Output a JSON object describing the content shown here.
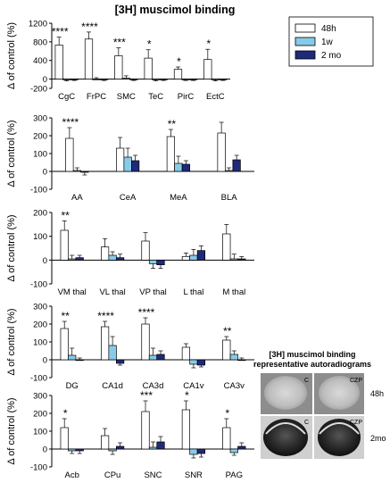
{
  "title": "[3H] muscimol binding",
  "legend": {
    "placement": "top-right",
    "entries": [
      {
        "name": "48h",
        "color": "#ffffff"
      },
      {
        "name": "1w",
        "color": "#87cbe8"
      },
      {
        "name": "2 mo",
        "color": "#1f2a7a"
      }
    ]
  },
  "ylabel": "Δ of control (%)",
  "colors": {
    "s48h": "#ffffff",
    "s1w": "#87cbe8",
    "s2mo": "#1f2a7a",
    "axis": "#000000"
  },
  "chart_data": [
    {
      "type": "bar",
      "ylim": [
        -200,
        1200
      ],
      "yticks": [
        -200,
        0,
        400,
        800,
        1200
      ],
      "ylabel": "Δ of control (%)",
      "categories": [
        "CgC",
        "FrPC",
        "SMC",
        "TeC",
        "PirC",
        "EctC"
      ],
      "series": [
        {
          "name": "48h",
          "values": [
            730,
            860,
            500,
            450,
            210,
            420
          ],
          "errors": [
            170,
            150,
            170,
            180,
            50,
            220
          ]
        },
        {
          "name": "1w",
          "values": [
            -10,
            0,
            20,
            -10,
            -10,
            -10
          ],
          "errors": [
            30,
            30,
            50,
            30,
            20,
            30
          ]
        },
        {
          "name": "2 mo",
          "values": [
            -10,
            -10,
            -10,
            -10,
            -10,
            -10
          ],
          "errors": [
            20,
            20,
            20,
            20,
            20,
            20
          ]
        }
      ],
      "significance": [
        "****",
        "****",
        "***",
        "*",
        "*",
        "*"
      ]
    },
    {
      "type": "bar",
      "ylim": [
        -100,
        300
      ],
      "yticks": [
        -100,
        0,
        100,
        200,
        300
      ],
      "ylabel": "Δ of control (%)",
      "categories": [
        "AA",
        "CeA",
        "MeA",
        "BLA"
      ],
      "series": [
        {
          "name": "48h",
          "values": [
            185,
            130,
            195,
            215
          ],
          "errors": [
            60,
            60,
            40,
            60
          ]
        },
        {
          "name": "1w",
          "values": [
            5,
            80,
            45,
            5
          ],
          "errors": [
            15,
            50,
            40,
            15
          ]
        },
        {
          "name": "2 mo",
          "values": [
            -5,
            60,
            40,
            65
          ],
          "errors": [
            15,
            30,
            20,
            25
          ]
        }
      ],
      "significance": [
        "****",
        "",
        "**",
        ""
      ]
    },
    {
      "type": "bar",
      "ylim": [
        -100,
        200
      ],
      "yticks": [
        -100,
        0,
        100,
        200
      ],
      "ylabel": "Δ of control (%)",
      "categories": [
        "VM thal",
        "VL thal",
        "VP thal",
        "L thal",
        "M thal"
      ],
      "series": [
        {
          "name": "48h",
          "values": [
            125,
            55,
            80,
            15,
            110
          ],
          "errors": [
            40,
            35,
            35,
            15,
            40
          ]
        },
        {
          "name": "1w",
          "values": [
            5,
            20,
            -15,
            20,
            5
          ],
          "errors": [
            15,
            15,
            20,
            25,
            20
          ]
        },
        {
          "name": "2 mo",
          "values": [
            10,
            10,
            -20,
            40,
            5
          ],
          "errors": [
            10,
            15,
            15,
            20,
            10
          ]
        }
      ],
      "significance": [
        "**",
        "",
        "",
        "",
        ""
      ]
    },
    {
      "type": "bar",
      "ylim": [
        -100,
        300
      ],
      "yticks": [
        -100,
        0,
        100,
        200,
        300
      ],
      "ylabel": "Δ of control (%)",
      "categories": [
        "DG",
        "CA1d",
        "CA3d",
        "CA1v",
        "CA3v"
      ],
      "series": [
        {
          "name": "48h",
          "values": [
            175,
            185,
            200,
            70,
            110
          ],
          "errors": [
            40,
            30,
            35,
            20,
            20
          ]
        },
        {
          "name": "1w",
          "values": [
            25,
            80,
            25,
            -25,
            30
          ],
          "errors": [
            40,
            50,
            40,
            20,
            20
          ]
        },
        {
          "name": "2 mo",
          "values": [
            0,
            -20,
            30,
            -30,
            0
          ],
          "errors": [
            10,
            10,
            20,
            10,
            10
          ]
        }
      ],
      "significance": [
        "**",
        "****",
        "****",
        "",
        "**"
      ]
    },
    {
      "type": "bar",
      "ylim": [
        -100,
        300
      ],
      "yticks": [
        -100,
        0,
        100,
        200,
        300
      ],
      "ylabel": "Δ of control (%)",
      "categories": [
        "Acb",
        "CPu",
        "SNC",
        "SNR",
        "PAG"
      ],
      "series": [
        {
          "name": "48h",
          "values": [
            120,
            75,
            210,
            220,
            120
          ],
          "errors": [
            50,
            40,
            60,
            50,
            50
          ]
        },
        {
          "name": "1w",
          "values": [
            -10,
            -10,
            10,
            -30,
            -20
          ],
          "errors": [
            15,
            20,
            30,
            20,
            15
          ]
        },
        {
          "name": "2 mo",
          "values": [
            -10,
            15,
            40,
            -25,
            15
          ],
          "errors": [
            15,
            20,
            30,
            20,
            20
          ]
        }
      ],
      "significance": [
        "*",
        "",
        "***",
        "*",
        "*"
      ]
    }
  ],
  "autoradiograms": {
    "title_line1": "[3H] muscimol binding",
    "title_line2": "representative autoradiograms",
    "col_labels": [
      "C",
      "CZP"
    ],
    "row_labels": [
      "48h",
      "2mo"
    ]
  }
}
